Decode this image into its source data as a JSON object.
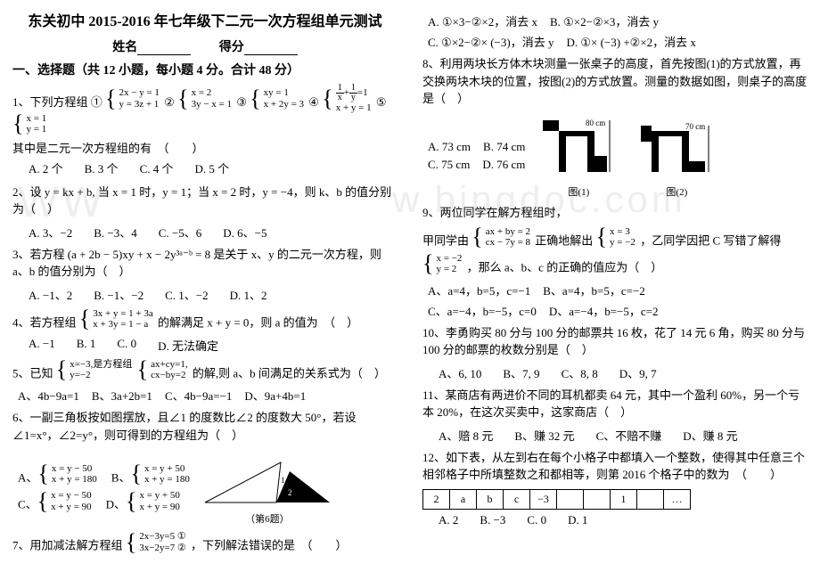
{
  "left": {
    "title": "东关初中 2015-2016 年七年级下二元一次方程组单元测试",
    "name_label": "姓名",
    "score_label": "得分",
    "section1": "一、选择题（共 12 小题，每小题 4 分。合计 48 分）",
    "q1_stem": "1、下列方程组 ①",
    "q1_g1a": "2x − y = 1",
    "q1_g1b": "y = 3z + 1",
    "q1_c2": "②",
    "q1_g2a": "x = 2",
    "q1_g2b": "3y − x = 1",
    "q1_c3": "③",
    "q1_g3a": "xy = 1",
    "q1_g3b": "x + 2y = 3",
    "q1_c4": "④",
    "q1_g4top": "1⁄x + 1⁄y = 1",
    "q1_g4b": "x + y = 1",
    "q1_c5": "⑤",
    "q1_g5a": "x = 1",
    "q1_g5b": "y = 1",
    "q1_tail": "其中是二元一次方程组的有　（　　）",
    "q1_A": "A. 2 个",
    "q1_B": "B. 3 个",
    "q1_C": "C. 4 个",
    "q1_D": "D. 5 个",
    "q2": "2、设 y = kx + b, 当 x = 1 时，y = 1；当 x = 2 时，y = −4，则 k、b 的值分别为（　）",
    "q2_A": "A. 3、−2",
    "q2_B": "B. −3、4",
    "q2_C": "C. −5、6",
    "q2_D": "D. 6、−5",
    "q3": "3、若方程 (a + 2b − 5)xy + x − 2y³ᵃ⁻ᵇ = 8 是关于 x、y 的二元一次方程，则 a、b 的值分别为（　）",
    "q3_A": "A. −1、2",
    "q3_B": "B. −1、−2",
    "q3_C": "C. 1、−2",
    "q3_D": "D. 1、2",
    "q4_head": "4、若方程组",
    "q4_ga": "3x + y = 1 + 3a",
    "q4_gb": "x + 3y = 1 − a",
    "q4_tail": "的解满足 x + y = 0，则 a 的值为　（　）",
    "q4_A": "A. −1",
    "q4_B": "B. 1",
    "q4_C": "C. 0",
    "q4_D": "D. 无法确定",
    "q5_head": "5、已知",
    "q5_ga": "x=−3,是方程组",
    "q5_gb": "y=−2",
    "q5_g2a": "ax+cy=1,",
    "q5_g2b": "cx−by=2",
    "q5_tail": "的解,则 a、b 间满足的关系式为（　）",
    "q5_A": "A、4b−9a=1",
    "q5_B": "B、3a+2b=1",
    "q5_C": "C、4b−9a=−1",
    "q5_D": "D、9a+4b=1",
    "q6": "6、一副三角板按如图摆放，且∠1 的度数比∠2 的度数大 50°，若设∠1=x°，∠2=y°，则可得到的方程组为（　）",
    "q6_Aa": "x = y − 50",
    "q6_Ab": "x + y = 180",
    "q6_Ba": "x = y + 50",
    "q6_Bb": "x + y = 180",
    "q6_Ca": "x = y − 50",
    "q6_Cb": "x + y = 90",
    "q6_Da": "x = y + 50",
    "q6_Db": "x + y = 90",
    "q6_caption": "（第6题）",
    "q7_head": "7、用加减法解方程组",
    "q7_a": "2x−3y=5 ①",
    "q7_b": "3x−2y=7 ②",
    "q7_tail": "，下列解法错误的是　（　　）"
  },
  "right": {
    "q7_A": "A. ①×3−②×2，消去 x",
    "q7_B": "B. ①×2−②×3，消去 y",
    "q7_C": "C. ①×2−②× (−3)，消去 y",
    "q7_D": "D. ①× (−3) +②×2，消去 x",
    "q8": "8、利用两块长方体木块测量一张桌子的高度，首先按图(1)的方式放置，再交换两块木块的位置，按图(2)的方式放置。测量的数据如图，则桌子的高度是（　）",
    "q8_A": "A. 73 cm",
    "q8_B": "B. 74 cm",
    "q8_C": "C. 75 cm",
    "q8_D": "D. 76 cm",
    "q8_l1": "80 cm",
    "q8_l2": "70 cm",
    "q8_cap1": "图(1)",
    "q8_cap2": "图(2)",
    "q9": "9、两位同学在解方程组时，",
    "q9_sub1": "甲同学由",
    "q9_g1a": "ax + by = 2",
    "q9_g1b": "cx − 7y = 8",
    "q9_sub2": "正确地解出",
    "q9_g2a": "x = 3",
    "q9_g2b": "y = −2",
    "q9_sub3": "，乙同学因把 C 写错了解得",
    "q9_g3a": "x = −2",
    "q9_g3b": "y = 2",
    "q9_tail": "，那么 a、b、c 的正确的值应为（　）",
    "q9_A": "A、a=4，b=5，c=−1",
    "q9_B": "B、a=4，b=5，c=−2",
    "q9_C": "C、a=−4，b=−5，c=0",
    "q9_D": "D、a=−4，b=−5，c=2",
    "q10": "10、李勇购买 80 分与 100 分的邮票共 16 枚，花了 14 元 6 角，购买 80 分与 100 分的邮票的枚数分别是（　）",
    "q10_A": "A、6, 10",
    "q10_B": "B、7, 9",
    "q10_C": "C、8, 8",
    "q10_D": "D、9, 7",
    "q11": "11、某商店有两进价不同的耳机都卖 64 元，其中一个盈利 60%，另一个亏本 20%，在这次买卖中，这家商店（　）",
    "q11_A": "A、赔 8 元",
    "q11_B": "B、赚 32 元",
    "q11_C": "C、不赔不赚",
    "q11_D": "D、赚 8 元",
    "q12": "12、如下表，从左到右在每个小格子中都填入一个整数，使得其中任意三个相邻格子中所填整数之和都相等，则第 2016 个格子中的数为　（　　）",
    "q12_cells": [
      "2",
      "a",
      "b",
      "c",
      "−3",
      "",
      "",
      "1",
      "",
      "…"
    ],
    "q12_A": "A. 2",
    "q12_B": "B. −3",
    "q12_C": "C. 0",
    "q12_D": "D. 1"
  }
}
